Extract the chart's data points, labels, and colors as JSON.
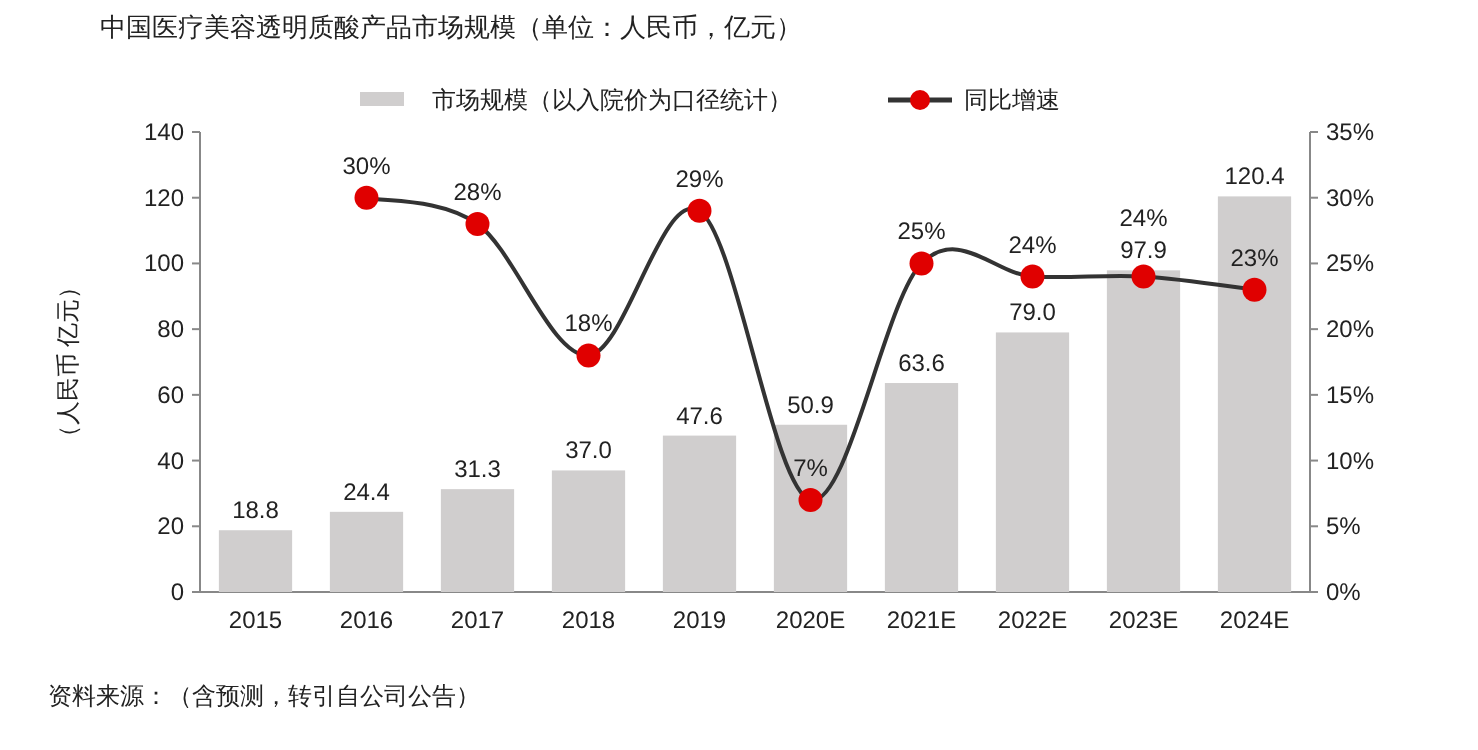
{
  "chart_data": {
    "type": "bar",
    "title": "中国医疗美容透明质酸产品市场规模（单位：人民币，亿元）",
    "categories": [
      "2015",
      "2016",
      "2017",
      "2018",
      "2019",
      "2020E",
      "2021E",
      "2022E",
      "2023E",
      "2024E"
    ],
    "series": [
      {
        "name": "市场规模（以入院价为口径统计）",
        "color": "#d0cece",
        "values": [
          18.8,
          24.4,
          31.3,
          37.0,
          47.6,
          50.9,
          63.6,
          79.0,
          97.9,
          120.4
        ],
        "value_labels": [
          "18.8",
          "24.4",
          "31.3",
          "37.0",
          "47.6",
          "50.9",
          "63.6",
          "79.0",
          "97.9",
          "120.4"
        ]
      },
      {
        "name": "同比增速",
        "type": "line",
        "axis": "y2",
        "color": "#e00000",
        "marker": "circle",
        "values": [
          null,
          30,
          28,
          18,
          29,
          7,
          25,
          24,
          24,
          23
        ],
        "value_labels": [
          null,
          "30%",
          "28%",
          "18%",
          "29%",
          "7%",
          "25%",
          "24%",
          "24%",
          "23%"
        ]
      }
    ],
    "ylabel": "（人民币 亿元）",
    "ylim": [
      0,
      140
    ],
    "yticks": [
      0,
      20,
      40,
      60,
      80,
      100,
      120,
      140
    ],
    "y2lim": [
      0,
      35
    ],
    "y2ticks": [
      {
        "value": 0,
        "label": "0%"
      },
      {
        "value": 5,
        "label": "5%"
      },
      {
        "value": 10,
        "label": "10%"
      },
      {
        "value": 15,
        "label": "15%"
      },
      {
        "value": 20,
        "label": "20%"
      },
      {
        "value": 25,
        "label": "25%"
      },
      {
        "value": 30,
        "label": "30%"
      },
      {
        "value": 35,
        "label": "35%"
      }
    ],
    "legend": "top",
    "grid": false,
    "annotations": [
      "资料来源：（含预测，转引自公司公告）"
    ]
  }
}
